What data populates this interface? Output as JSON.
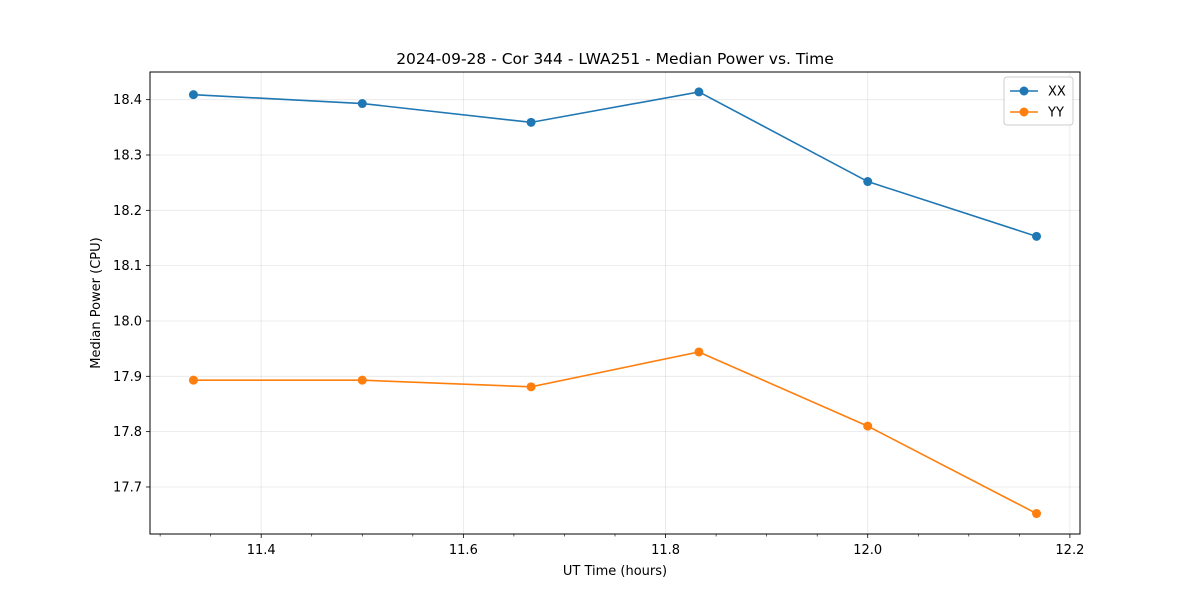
{
  "chart_data": {
    "type": "line",
    "title": "2024-09-28 - Cor 344 - LWA251 - Median Power vs. Time",
    "xlabel": "UT Time (hours)",
    "ylabel": "Median Power (CPU)",
    "xlim": [
      11.29,
      12.21
    ],
    "ylim": [
      17.615,
      18.45
    ],
    "xticks": [
      11.4,
      11.6,
      11.8,
      12.0,
      12.2
    ],
    "xtick_labels": [
      "11.4",
      "11.6",
      "11.8",
      "12.0",
      "12.2"
    ],
    "yticks": [
      17.7,
      17.8,
      17.9,
      18.0,
      18.1,
      18.2,
      18.3,
      18.4
    ],
    "ytick_labels": [
      "17.7",
      "17.8",
      "17.9",
      "18.0",
      "18.1",
      "18.2",
      "18.3",
      "18.4"
    ],
    "grid": true,
    "legend_position": "top-right",
    "x": [
      11.333,
      11.5,
      11.667,
      11.833,
      12.0,
      12.167
    ],
    "series": [
      {
        "name": "XX",
        "color": "#1f77b4",
        "values": [
          18.409,
          18.393,
          18.359,
          18.414,
          18.252,
          18.153
        ]
      },
      {
        "name": "YY",
        "color": "#ff7f0e",
        "values": [
          17.893,
          17.893,
          17.881,
          17.944,
          17.81,
          17.652
        ]
      }
    ]
  }
}
